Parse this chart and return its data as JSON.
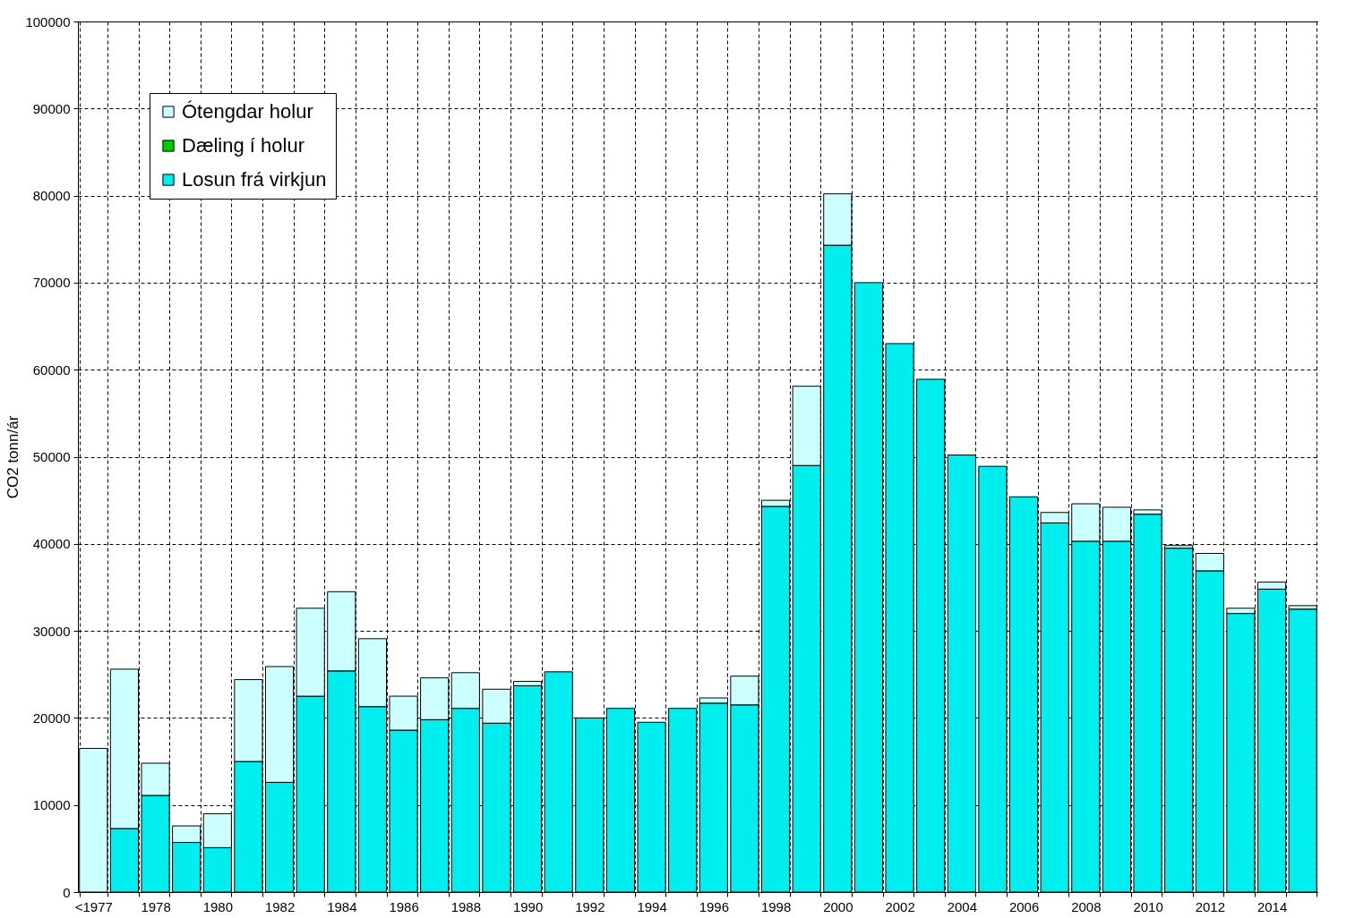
{
  "chart_data": {
    "type": "bar",
    "stacked": true,
    "ylabel": "CO2 tonn/ár",
    "categories": [
      "<1977",
      null,
      "1978",
      null,
      "1980",
      null,
      "1982",
      null,
      "1984",
      null,
      "1986",
      null,
      "1988",
      null,
      "1990",
      null,
      "1992",
      null,
      "1994",
      null,
      "1996",
      null,
      "1998",
      null,
      "2000",
      null,
      "2002",
      null,
      "2004",
      null,
      "2006",
      null,
      "2008",
      null,
      "2010",
      null,
      "2012",
      null,
      "2014",
      null
    ],
    "series": [
      {
        "name": "Losun frá virkjun",
        "color": "#00eeee",
        "values": [
          0,
          7300,
          11100,
          5700,
          5100,
          15000,
          12600,
          22500,
          25400,
          21300,
          18600,
          19800,
          21100,
          19400,
          23700,
          25300,
          20000,
          21100,
          19500,
          21100,
          21700,
          21500,
          44300,
          49000,
          74300,
          70000,
          63000,
          58900,
          50200,
          48900,
          45400,
          42400,
          40300,
          40300,
          43400,
          39500,
          36900,
          32000,
          34800,
          32500
        ]
      },
      {
        "name": "Dæling í holur",
        "color": "#00cc00",
        "values": [
          0,
          0,
          0,
          0,
          0,
          0,
          0,
          0,
          0,
          0,
          0,
          0,
          0,
          0,
          0,
          0,
          0,
          0,
          0,
          0,
          0,
          0,
          0,
          0,
          0,
          0,
          0,
          0,
          0,
          0,
          0,
          0,
          0,
          0,
          0,
          0,
          0,
          0,
          0,
          0
        ]
      },
      {
        "name": "Ótengdar holur",
        "color": "#ccffff",
        "values": [
          16500,
          18300,
          3700,
          1900,
          3900,
          9400,
          13300,
          10100,
          9100,
          7800,
          3900,
          4800,
          4100,
          3900,
          500,
          0,
          0,
          0,
          0,
          0,
          600,
          3300,
          700,
          9100,
          5900,
          0,
          0,
          0,
          0,
          0,
          0,
          1200,
          4300,
          3900,
          500,
          300,
          2000,
          600,
          800,
          400
        ]
      }
    ],
    "ylim": [
      0,
      100000
    ],
    "yticks": [
      0,
      10000,
      20000,
      30000,
      40000,
      50000,
      60000,
      70000,
      80000,
      90000,
      100000
    ],
    "grid": true,
    "legend": "top left"
  }
}
